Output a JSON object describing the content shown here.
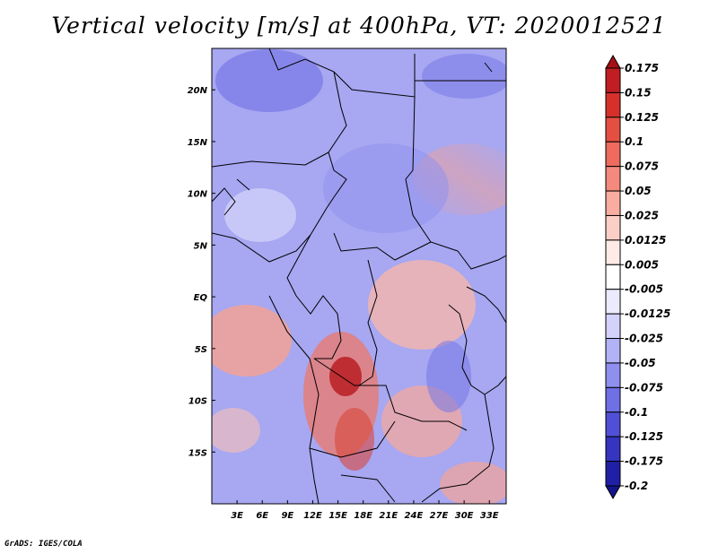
{
  "title": "Vertical velocity [m/s] at 400hPa, VT: 2020012521",
  "credit": "GrADS: IGES/COLA",
  "chart_data": {
    "type": "heatmap",
    "title": "Vertical velocity [m/s] at 400hPa, VT: 2020012521",
    "variable": "Vertical velocity",
    "units": "m/s",
    "level": "400hPa",
    "valid_time": "2020012521",
    "lon_range": [
      0,
      35
    ],
    "lat_range": [
      -20,
      24
    ],
    "x_ticks": [
      {
        "value": 3,
        "label": "3E"
      },
      {
        "value": 6,
        "label": "6E"
      },
      {
        "value": 9,
        "label": "9E"
      },
      {
        "value": 12,
        "label": "12E"
      },
      {
        "value": 15,
        "label": "15E"
      },
      {
        "value": 18,
        "label": "18E"
      },
      {
        "value": 21,
        "label": "21E"
      },
      {
        "value": 24,
        "label": "24E"
      },
      {
        "value": 27,
        "label": "27E"
      },
      {
        "value": 30,
        "label": "30E"
      },
      {
        "value": 33,
        "label": "33E"
      }
    ],
    "y_ticks": [
      {
        "value": 20,
        "label": "20N"
      },
      {
        "value": 15,
        "label": "15N"
      },
      {
        "value": 10,
        "label": "10N"
      },
      {
        "value": 5,
        "label": "5N"
      },
      {
        "value": 0,
        "label": "EQ"
      },
      {
        "value": -5,
        "label": "5S"
      },
      {
        "value": -10,
        "label": "10S"
      },
      {
        "value": -15,
        "label": "15S"
      }
    ],
    "colorbar": {
      "levels": [
        "0.175",
        "0.15",
        "0.125",
        "0.1",
        "0.075",
        "0.05",
        "0.025",
        "0.0125",
        "0.005",
        "-0.005",
        "-0.0125",
        "-0.025",
        "-0.05",
        "-0.075",
        "-0.1",
        "-0.125",
        "-0.175",
        "-0.2"
      ],
      "colors": [
        "#a50f15",
        "#c01e22",
        "#d7302a",
        "#e44f42",
        "#ee6b5d",
        "#f48a7d",
        "#f9aca0",
        "#fccfc6",
        "#feeae6",
        "#ffffff",
        "#ebebfd",
        "#d2d2fb",
        "#b2b2f6",
        "#8f8fef",
        "#6f6fe6",
        "#5050d6",
        "#3535c0",
        "#2020a6",
        "#14148a"
      ]
    }
  }
}
